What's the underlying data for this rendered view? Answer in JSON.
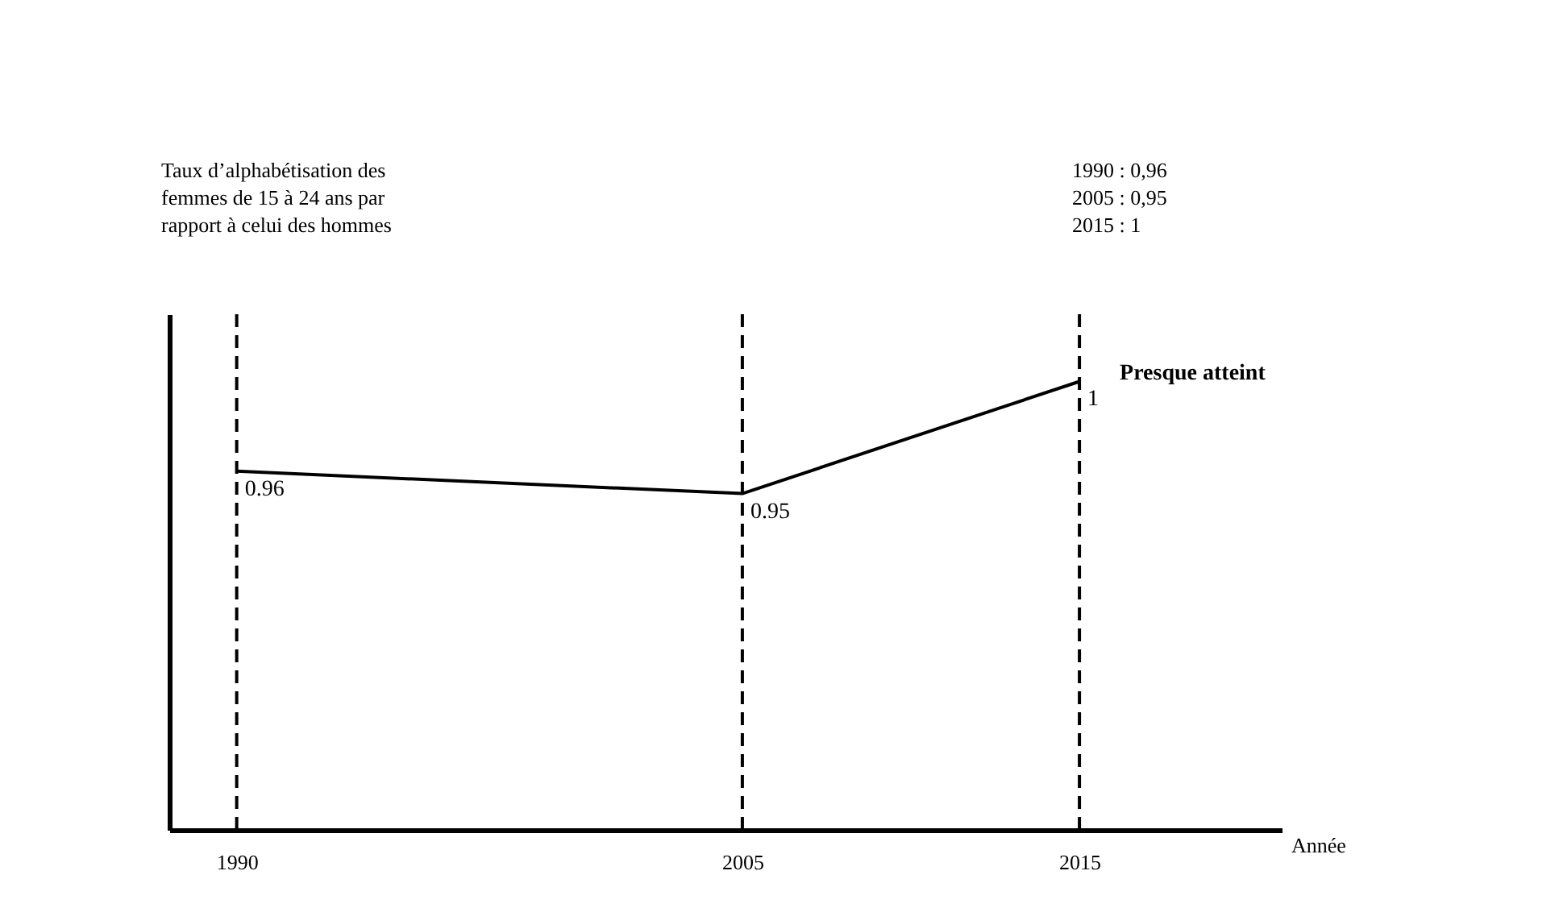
{
  "chart_data": {
    "type": "line",
    "x": [
      1990,
      2005,
      2015
    ],
    "values": [
      0.96,
      0.95,
      1
    ],
    "color": "#000000",
    "xlim": [
      1988,
      2021
    ],
    "xticks": [
      1990,
      2005,
      2015
    ],
    "ylim": [
      0.8,
      1.03
    ],
    "tick_labels": "x",
    "grid": false,
    "marker": "none",
    "line_style": "solid",
    "data_labels": true,
    "xlabel": "Année",
    "ylabel": "Taux d’alphabétisation des femmes de 15 à 24 ans par rapport à celui des hommes",
    "ref_lines": [
      {
        "axis": "x",
        "value": 1990,
        "color": "#000000",
        "line_style": "dashed"
      },
      {
        "axis": "x",
        "value": 2005,
        "color": "#000000",
        "line_style": "dashed"
      },
      {
        "axis": "x",
        "value": 2015,
        "color": "#000000",
        "line_style": "dashed"
      }
    ],
    "annotations": [
      "1990 :   0,96",
      "2005 :   0,95",
      "2015 :      1",
      {
        "text": "Presque atteint",
        "x": 2015,
        "y": 1
      }
    ]
  }
}
